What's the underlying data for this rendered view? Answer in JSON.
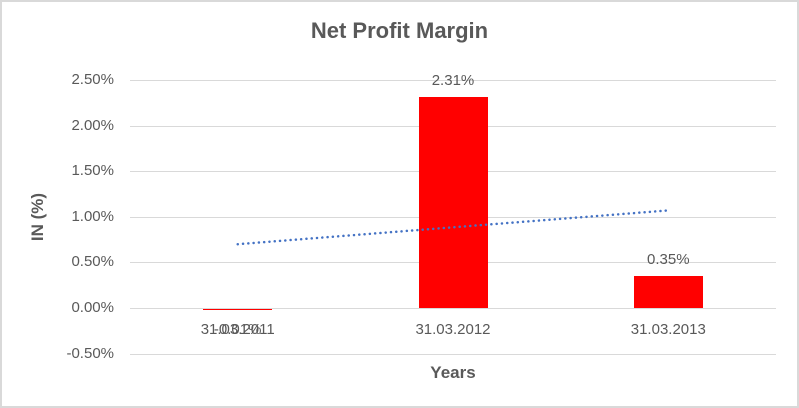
{
  "chart_data": {
    "type": "bar",
    "title": "Net Profit Margin",
    "xlabel": "Years",
    "ylabel": "IN (%)",
    "categories": [
      "31.03.2011",
      "31.03.2012",
      "31.03.2013"
    ],
    "values": [
      -0.01,
      2.31,
      0.35
    ],
    "data_labels": [
      "-0.01%",
      "2.31%",
      "0.35%"
    ],
    "ytick_labels": [
      "2.50%",
      "2.00%",
      "1.50%",
      "1.00%",
      "0.50%",
      "0.00%",
      "-0.50%"
    ],
    "ylim": [
      -0.5,
      2.5
    ],
    "ytick_step": 0.5,
    "grid": true,
    "legend": "none",
    "bar_color": "#FF0000",
    "text_color": "#595959",
    "gridline_color": "#D9D9D9",
    "trendline": {
      "style": "dotted",
      "color": "#4472C4",
      "start_value": 0.7,
      "end_value": 1.07
    }
  }
}
